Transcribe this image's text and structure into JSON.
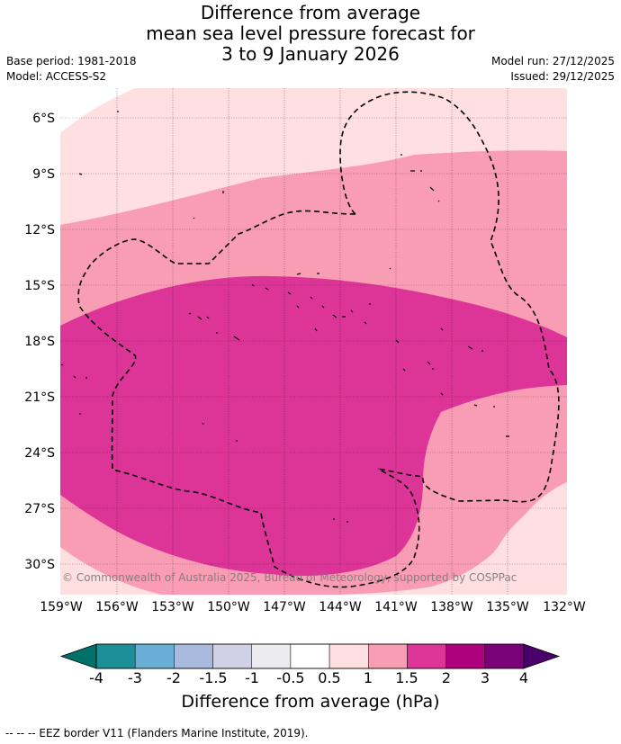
{
  "header": {
    "title_line1": "Difference from average",
    "title_line2": "mean sea level pressure forecast for",
    "title_line3": "3 to 9 January 2026",
    "base_period": "Base period: 1981-2018",
    "model": "Model: ACCESS-S2",
    "model_run": "Model run: 27/12/2025",
    "issued": "Issued: 29/12/2025"
  },
  "map": {
    "lat_labels": [
      "6°S",
      "9°S",
      "12°S",
      "15°S",
      "18°S",
      "21°S",
      "24°S",
      "27°S",
      "30°S"
    ],
    "lon_labels": [
      "159°W",
      "156°W",
      "153°W",
      "150°W",
      "147°W",
      "144°W",
      "141°W",
      "138°W",
      "135°W",
      "132°W"
    ],
    "copyright": "© Commonwealth of Australia 2025, Bureau of Meteorology, supported by COSPPac",
    "colors": {
      "band_0.5_1": "#ffdfe0",
      "band_1_1.5": "#f99db5",
      "band_1.5_2": "#dd3498"
    }
  },
  "colorbar": {
    "labels": [
      "-4",
      "-3",
      "-2",
      "-1.5",
      "-1",
      "-0.5",
      "0.5",
      "1",
      "1.5",
      "2",
      "3",
      "4"
    ],
    "colors": [
      "#1c9098",
      "#69aed5",
      "#a8badd",
      "#d0d1e6",
      "#ececf0",
      "#ffffff",
      "#ffdfe0",
      "#f99db5",
      "#dd3498",
      "#ae017e",
      "#7a0177"
    ],
    "extend_low_color": "#00706a",
    "extend_high_color": "#49006a",
    "title": "Difference from average (hPa)"
  },
  "footer": {
    "legend": "--  --  -- EEZ border V11 (Flanders Marine Institute, 2019)."
  }
}
